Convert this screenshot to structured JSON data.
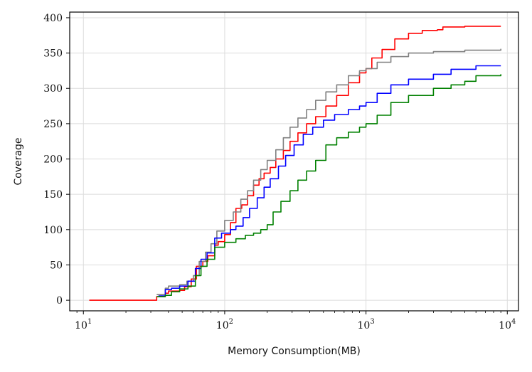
{
  "chart_data": {
    "type": "line",
    "xlabel": "Memory Consumption(MB)",
    "ylabel": "Coverage",
    "xscale": "log",
    "xlim": [
      8,
      12000
    ],
    "ylim": [
      -15,
      408
    ],
    "grid": true,
    "legend": "none",
    "x_ticks": [
      10,
      100,
      1000,
      10000
    ],
    "x_tick_labels": [
      {
        "base": "10",
        "exp": "1"
      },
      {
        "base": "10",
        "exp": "2"
      },
      {
        "base": "10",
        "exp": "3"
      },
      {
        "base": "10",
        "exp": "4"
      }
    ],
    "y_ticks": [
      0,
      50,
      100,
      150,
      200,
      250,
      300,
      350,
      400
    ],
    "y_tick_labels": [
      "0",
      "50",
      "100",
      "150",
      "200",
      "250",
      "300",
      "350",
      "400"
    ],
    "series": [
      {
        "color": "#ff0000",
        "points": [
          [
            11,
            0
          ],
          [
            32,
            0
          ],
          [
            33,
            5
          ],
          [
            38,
            10
          ],
          [
            40,
            13
          ],
          [
            48,
            14
          ],
          [
            52,
            19
          ],
          [
            58,
            30
          ],
          [
            63,
            48
          ],
          [
            70,
            55
          ],
          [
            76,
            63
          ],
          [
            85,
            78
          ],
          [
            90,
            83
          ],
          [
            100,
            93
          ],
          [
            110,
            110
          ],
          [
            120,
            130
          ],
          [
            132,
            135
          ],
          [
            145,
            148
          ],
          [
            160,
            163
          ],
          [
            175,
            172
          ],
          [
            190,
            180
          ],
          [
            210,
            188
          ],
          [
            230,
            200
          ],
          [
            260,
            212
          ],
          [
            290,
            225
          ],
          [
            330,
            237
          ],
          [
            380,
            250
          ],
          [
            440,
            260
          ],
          [
            520,
            275
          ],
          [
            620,
            290
          ],
          [
            750,
            308
          ],
          [
            900,
            322
          ],
          [
            1000,
            328
          ],
          [
            1100,
            343
          ],
          [
            1300,
            355
          ],
          [
            1600,
            370
          ],
          [
            2000,
            378
          ],
          [
            2500,
            382
          ],
          [
            3200,
            383
          ],
          [
            3500,
            387
          ],
          [
            5000,
            388
          ],
          [
            9000,
            388
          ]
        ]
      },
      {
        "color": "#808080",
        "points": [
          [
            33,
            8
          ],
          [
            38,
            17
          ],
          [
            40,
            20
          ],
          [
            48,
            22
          ],
          [
            54,
            27
          ],
          [
            60,
            35
          ],
          [
            66,
            55
          ],
          [
            73,
            68
          ],
          [
            80,
            80
          ],
          [
            88,
            98
          ],
          [
            100,
            113
          ],
          [
            115,
            125
          ],
          [
            130,
            143
          ],
          [
            145,
            155
          ],
          [
            160,
            170
          ],
          [
            180,
            185
          ],
          [
            200,
            198
          ],
          [
            230,
            213
          ],
          [
            260,
            230
          ],
          [
            290,
            245
          ],
          [
            330,
            258
          ],
          [
            380,
            270
          ],
          [
            440,
            283
          ],
          [
            520,
            295
          ],
          [
            620,
            305
          ],
          [
            750,
            318
          ],
          [
            900,
            325
          ],
          [
            1000,
            328
          ],
          [
            1200,
            337
          ],
          [
            1500,
            345
          ],
          [
            2000,
            350
          ],
          [
            3000,
            352
          ],
          [
            5000,
            354
          ],
          [
            9000,
            356
          ]
        ]
      },
      {
        "color": "#0000ff",
        "points": [
          [
            34,
            6
          ],
          [
            38,
            15
          ],
          [
            42,
            17
          ],
          [
            48,
            20
          ],
          [
            55,
            27
          ],
          [
            62,
            45
          ],
          [
            68,
            58
          ],
          [
            75,
            67
          ],
          [
            85,
            88
          ],
          [
            95,
            95
          ],
          [
            110,
            100
          ],
          [
            120,
            105
          ],
          [
            135,
            117
          ],
          [
            150,
            130
          ],
          [
            170,
            145
          ],
          [
            190,
            160
          ],
          [
            210,
            172
          ],
          [
            240,
            190
          ],
          [
            270,
            205
          ],
          [
            310,
            220
          ],
          [
            360,
            235
          ],
          [
            420,
            245
          ],
          [
            500,
            255
          ],
          [
            600,
            263
          ],
          [
            750,
            270
          ],
          [
            900,
            275
          ],
          [
            1000,
            280
          ],
          [
            1200,
            293
          ],
          [
            1500,
            305
          ],
          [
            2000,
            313
          ],
          [
            3000,
            320
          ],
          [
            4000,
            327
          ],
          [
            6000,
            332
          ],
          [
            9000,
            332
          ]
        ]
      },
      {
        "color": "#008000",
        "points": [
          [
            33,
            5
          ],
          [
            38,
            7
          ],
          [
            42,
            12
          ],
          [
            48,
            16
          ],
          [
            55,
            20
          ],
          [
            62,
            35
          ],
          [
            68,
            48
          ],
          [
            75,
            58
          ],
          [
            85,
            75
          ],
          [
            100,
            82
          ],
          [
            120,
            87
          ],
          [
            140,
            92
          ],
          [
            160,
            95
          ],
          [
            180,
            100
          ],
          [
            200,
            107
          ],
          [
            220,
            125
          ],
          [
            250,
            140
          ],
          [
            290,
            155
          ],
          [
            330,
            170
          ],
          [
            380,
            183
          ],
          [
            440,
            198
          ],
          [
            520,
            220
          ],
          [
            620,
            230
          ],
          [
            750,
            238
          ],
          [
            900,
            245
          ],
          [
            1000,
            250
          ],
          [
            1200,
            262
          ],
          [
            1500,
            280
          ],
          [
            2000,
            290
          ],
          [
            3000,
            300
          ],
          [
            4000,
            305
          ],
          [
            5000,
            310
          ],
          [
            6000,
            318
          ],
          [
            9000,
            320
          ]
        ]
      }
    ]
  }
}
